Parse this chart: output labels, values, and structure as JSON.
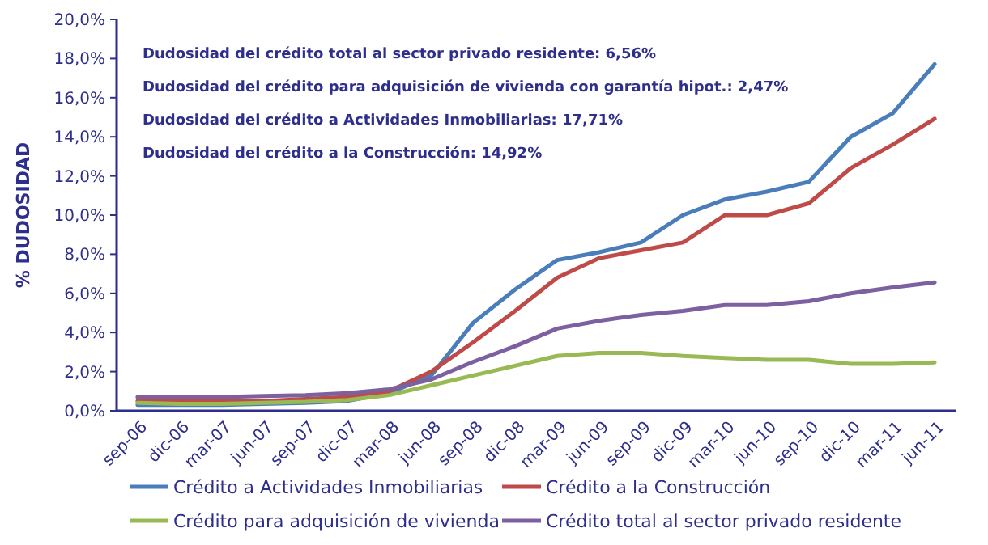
{
  "chart_data": {
    "type": "line",
    "ylabel": "% DUDOSIDAD",
    "annotations": [
      "Dudosidad del crédito total al sector privado residente: 6,56%",
      "Dudosidad del crédito para adquisición de vivienda con garantía hipot.: 2,47%",
      "Dudosidad del crédito a Actividades Inmobiliarias: 17,71%",
      "Dudosidad del crédito a la Construcción: 14,92%"
    ],
    "categories": [
      "sep-06",
      "dic-06",
      "mar-07",
      "jun-07",
      "sep-07",
      "dic-07",
      "mar-08",
      "jun-08",
      "sep-08",
      "dic-08",
      "mar-09",
      "jun-09",
      "sep-09",
      "dic-09",
      "mar-10",
      "jun-10",
      "sep-10",
      "dic-10",
      "mar-11",
      "jun-11"
    ],
    "series": [
      {
        "name": "Crédito a Actividades Inmobiliarias",
        "color": "#4a7ebb",
        "values": [
          0.3,
          0.3,
          0.3,
          0.35,
          0.4,
          0.5,
          0.9,
          1.8,
          4.5,
          6.2,
          7.7,
          8.1,
          8.6,
          10.0,
          10.8,
          11.2,
          11.7,
          14.0,
          15.2,
          17.71
        ]
      },
      {
        "name": "Crédito a la Construcción",
        "color": "#be4b48",
        "values": [
          0.5,
          0.5,
          0.5,
          0.5,
          0.6,
          0.7,
          1.0,
          2.0,
          3.5,
          5.1,
          6.8,
          7.8,
          8.2,
          8.6,
          10.0,
          10.0,
          10.6,
          12.4,
          13.6,
          14.92
        ]
      },
      {
        "name": "Crédito para adquisición de vivienda",
        "color": "#98b954",
        "values": [
          0.4,
          0.35,
          0.35,
          0.4,
          0.45,
          0.55,
          0.8,
          1.3,
          1.8,
          2.3,
          2.8,
          2.95,
          2.95,
          2.8,
          2.7,
          2.6,
          2.6,
          2.4,
          2.4,
          2.47
        ]
      },
      {
        "name": "Crédito total al sector privado residente",
        "color": "#7d60a0",
        "values": [
          0.7,
          0.7,
          0.7,
          0.75,
          0.8,
          0.9,
          1.1,
          1.6,
          2.5,
          3.3,
          4.2,
          4.6,
          4.9,
          5.1,
          5.4,
          5.4,
          5.6,
          6.0,
          6.3,
          6.56
        ]
      }
    ],
    "ylim": [
      0,
      20
    ],
    "yticks": [
      {
        "value": 0,
        "label": "0,0%"
      },
      {
        "value": 2,
        "label": "2,0%"
      },
      {
        "value": 4,
        "label": "4,0%"
      },
      {
        "value": 6,
        "label": "6,0%"
      },
      {
        "value": 8,
        "label": "8,0%"
      },
      {
        "value": 10,
        "label": "10,0%"
      },
      {
        "value": 12,
        "label": "12,0%"
      },
      {
        "value": 14,
        "label": "14,0%"
      },
      {
        "value": 16,
        "label": "16,0%"
      },
      {
        "value": 18,
        "label": "18,0%"
      },
      {
        "value": 20,
        "label": "20,0%"
      }
    ],
    "grid": false,
    "legend": "bottom",
    "marker": "none",
    "line_style": "solid"
  }
}
